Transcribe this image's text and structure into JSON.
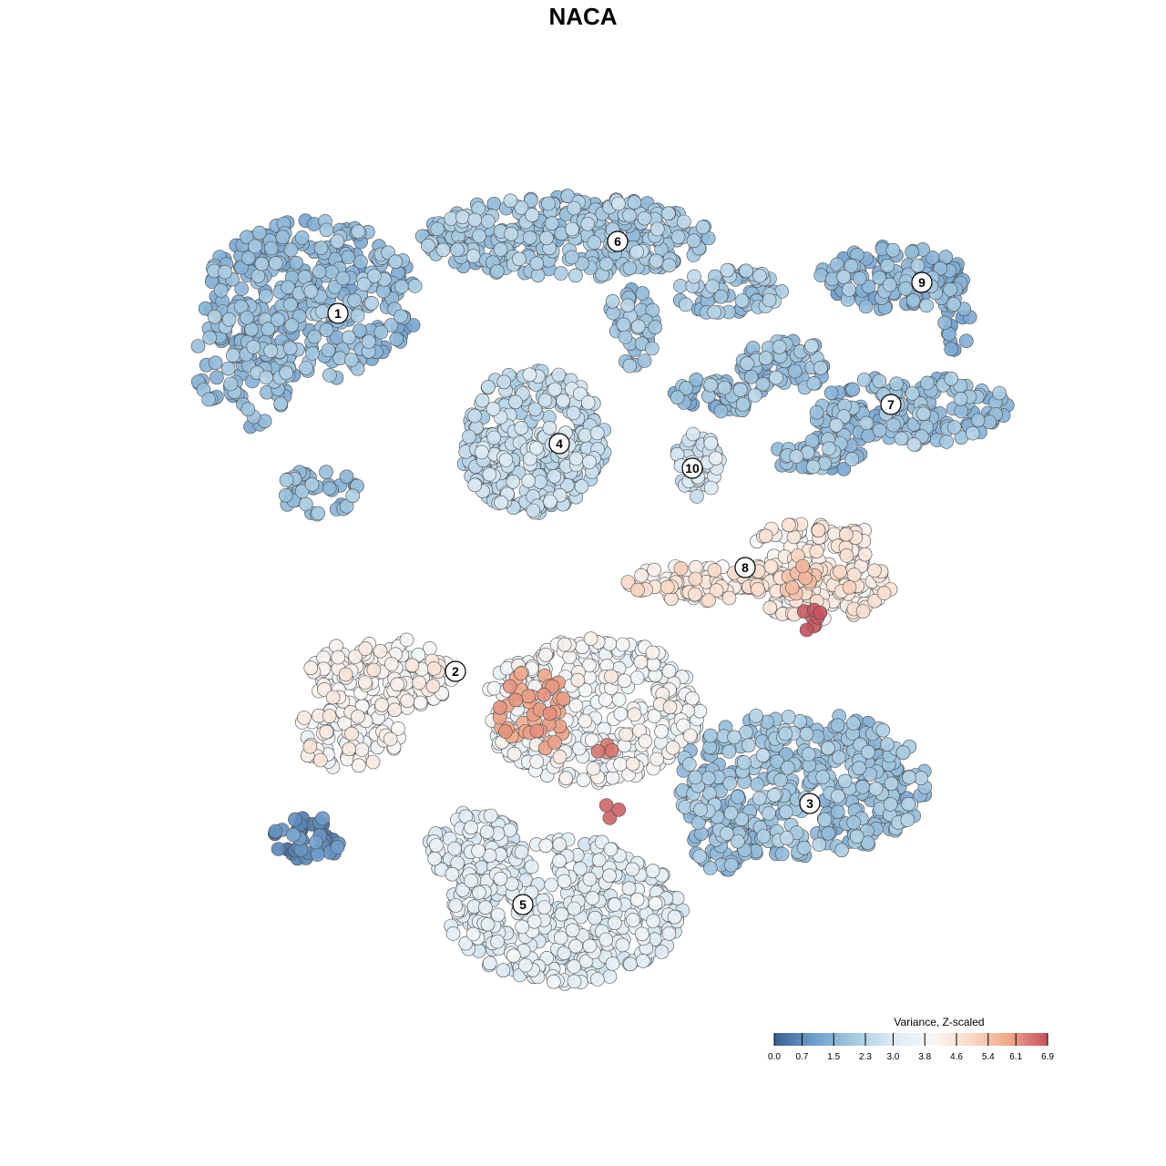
{
  "chart_data": {
    "type": "scatter",
    "title": "NACA",
    "xlabel": "",
    "ylabel": "",
    "grid": false,
    "legend_position": "bottom-right",
    "colorbar": {
      "title": "Variance, Z-scaled",
      "ticks": [
        "0.0",
        "0.7",
        "1.5",
        "2.3",
        "3.0",
        "3.8",
        "4.6",
        "5.4",
        "6.1",
        "6.9"
      ],
      "min": 0.0,
      "max": 6.9,
      "colors": [
        "#3a5f8f",
        "#6d9ccb",
        "#a3c8e0",
        "#dceaf4",
        "#f7f7f7",
        "#fadbc8",
        "#f0a98b",
        "#c4515e"
      ]
    },
    "clusters": [
      {
        "label": "1",
        "value": 1.6
      },
      {
        "label": "2",
        "value": 3.9
      },
      {
        "label": "3",
        "value": 1.8
      },
      {
        "label": "4",
        "value": 2.4
      },
      {
        "label": "5",
        "value": 3.1
      },
      {
        "label": "6",
        "value": 1.9
      },
      {
        "label": "7",
        "value": 1.7
      },
      {
        "label": "8",
        "value": 4.4
      },
      {
        "label": "9",
        "value": 1.4
      },
      {
        "label": "10",
        "value": 2.8
      }
    ]
  }
}
